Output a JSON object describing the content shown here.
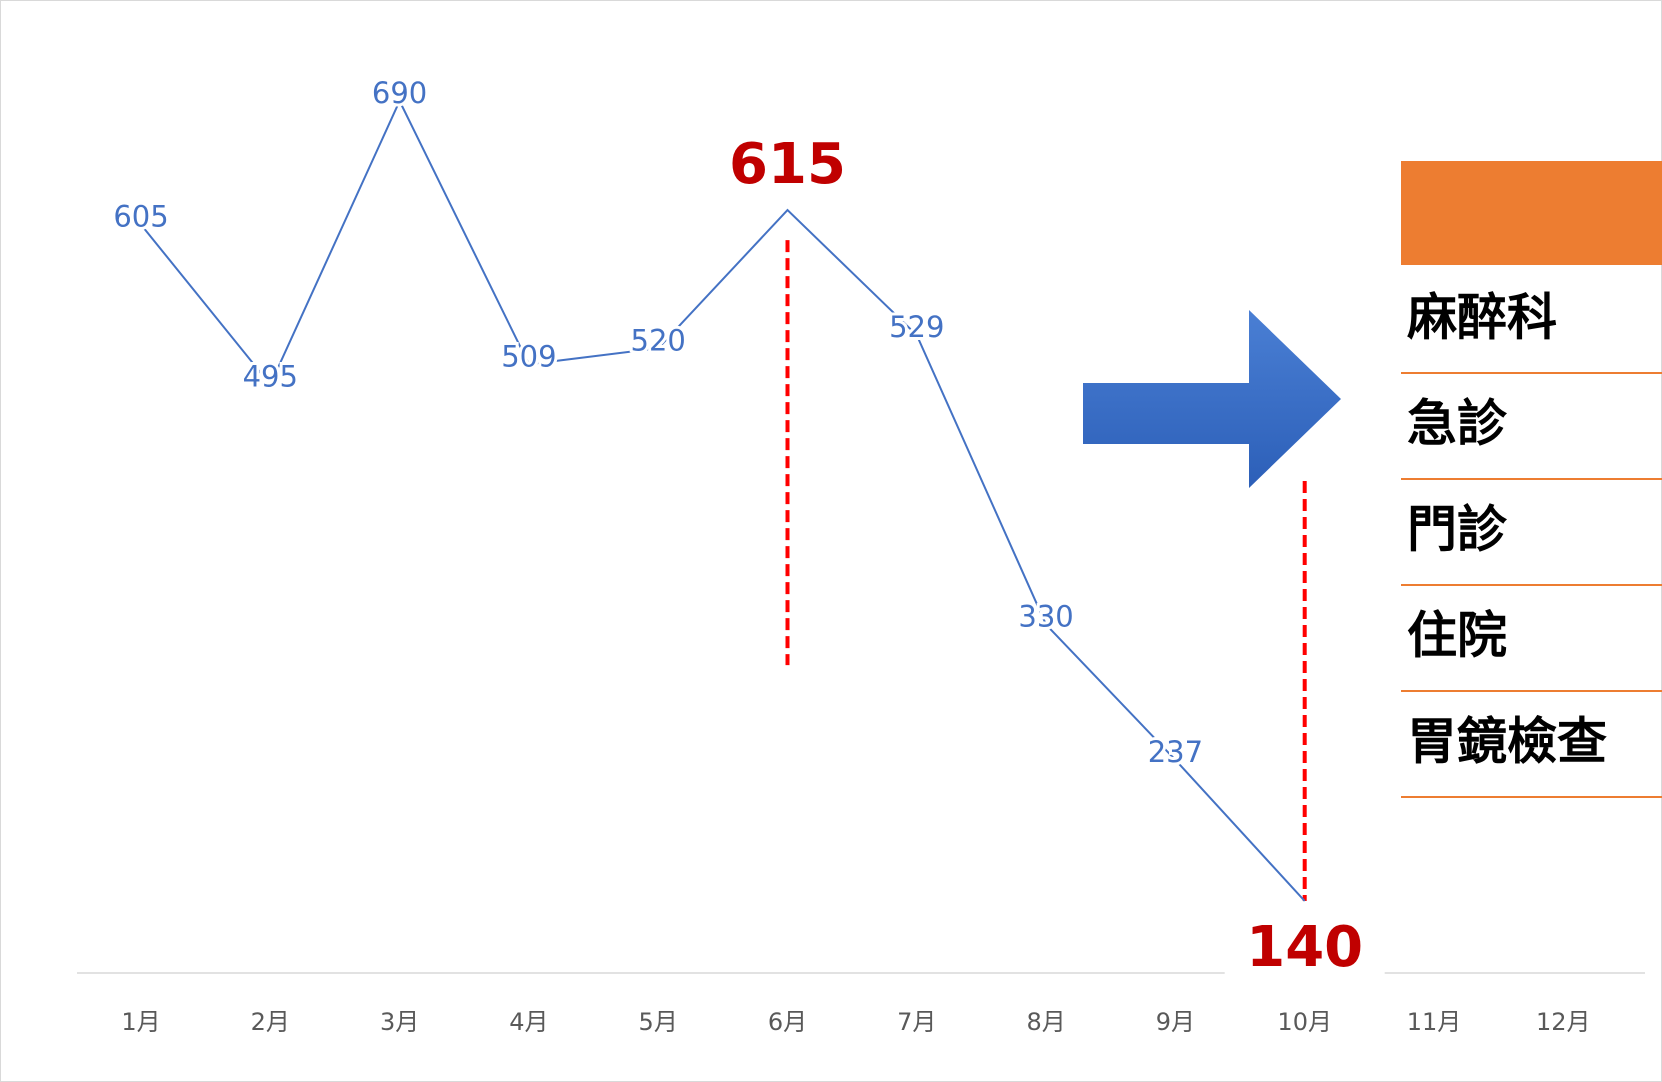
{
  "chart_data": {
    "type": "line",
    "categories": [
      "1月",
      "2月",
      "3月",
      "4月",
      "5月",
      "6月",
      "7月",
      "8月",
      "9月",
      "10月",
      "11月",
      "12月"
    ],
    "series": [
      {
        "color": "#4472c4",
        "values": [
          605,
          495,
          690,
          509,
          520,
          615,
          529,
          330,
          237,
          140,
          null,
          null
        ]
      }
    ],
    "highlight": [
      5,
      9
    ],
    "highlight_color": "#c00000"
  },
  "table": {
    "header_color": "#ed7d31",
    "rows": [
      "麻醉科",
      "急診",
      "門診",
      "住院",
      "胃鏡檢查"
    ]
  }
}
